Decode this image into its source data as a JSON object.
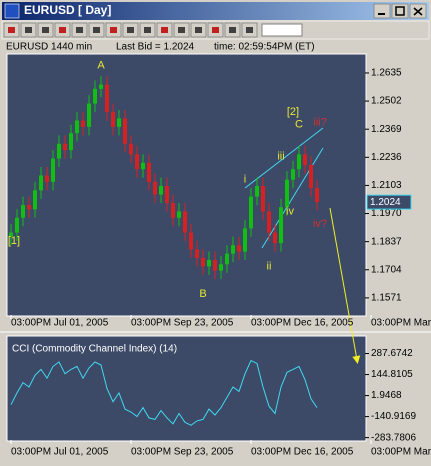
{
  "window": {
    "title": "EURUSD [ Day]"
  },
  "header": {
    "symbol": "EURUSD  1440 min",
    "last_bid": "Last Bid = 1.2024",
    "time": "time: 02:59:54PM (ET)"
  },
  "chart_data": [
    {
      "type": "candlestick",
      "open": [
        1.186,
        1.188,
        1.195,
        1.201,
        1.199,
        1.208,
        1.215,
        1.212,
        1.223,
        1.23,
        1.227,
        1.235,
        1.241,
        1.238,
        1.249,
        1.256,
        1.258,
        1.245,
        1.238,
        1.242,
        1.23,
        1.225,
        1.218,
        1.221,
        1.212,
        1.206,
        1.21,
        1.202,
        1.195,
        1.198,
        1.188,
        1.18,
        1.176,
        1.172,
        1.175,
        1.17,
        1.173,
        1.178,
        1.182,
        1.179,
        1.19,
        1.205,
        1.21,
        1.198,
        1.188,
        1.183,
        1.2,
        1.213,
        1.218,
        1.225,
        1.22,
        1.209
      ],
      "high": [
        1.192,
        1.199,
        1.205,
        1.205,
        1.212,
        1.219,
        1.219,
        1.227,
        1.234,
        1.234,
        1.239,
        1.245,
        1.245,
        1.253,
        1.26,
        1.262,
        1.262,
        1.249,
        1.246,
        1.246,
        1.234,
        1.229,
        1.225,
        1.225,
        1.216,
        1.214,
        1.214,
        1.206,
        1.202,
        1.202,
        1.192,
        1.184,
        1.18,
        1.179,
        1.179,
        1.177,
        1.182,
        1.186,
        1.186,
        1.194,
        1.209,
        1.214,
        1.214,
        1.202,
        1.192,
        1.204,
        1.217,
        1.222,
        1.229,
        1.229,
        1.224,
        1.213
      ],
      "low": [
        1.182,
        1.184,
        1.191,
        1.195,
        1.195,
        1.204,
        1.208,
        1.208,
        1.219,
        1.223,
        1.223,
        1.231,
        1.234,
        1.234,
        1.245,
        1.252,
        1.241,
        1.234,
        1.234,
        1.226,
        1.221,
        1.214,
        1.214,
        1.208,
        1.202,
        1.202,
        1.198,
        1.191,
        1.191,
        1.184,
        1.176,
        1.172,
        1.168,
        1.168,
        1.166,
        1.166,
        1.169,
        1.174,
        1.175,
        1.175,
        1.186,
        1.201,
        1.194,
        1.184,
        1.179,
        1.179,
        1.196,
        1.209,
        1.214,
        1.216,
        1.205,
        1.1984
      ],
      "close": [
        1.188,
        1.195,
        1.201,
        1.199,
        1.208,
        1.215,
        1.212,
        1.223,
        1.23,
        1.227,
        1.235,
        1.241,
        1.238,
        1.249,
        1.256,
        1.258,
        1.245,
        1.238,
        1.242,
        1.23,
        1.225,
        1.218,
        1.221,
        1.212,
        1.206,
        1.21,
        1.202,
        1.195,
        1.198,
        1.188,
        1.18,
        1.176,
        1.172,
        1.175,
        1.17,
        1.173,
        1.178,
        1.182,
        1.179,
        1.19,
        1.205,
        1.21,
        1.198,
        1.188,
        1.183,
        1.2,
        1.213,
        1.218,
        1.225,
        1.22,
        1.209,
        1.2024
      ],
      "up_color": "#10c010",
      "down_color": "#d82020",
      "xlim": [
        -0.5,
        59
      ],
      "ylim": [
        1.149,
        1.272
      ],
      "xticks": [
        {
          "value": 0,
          "label": "03:00PM Jul 01, 2005"
        },
        {
          "value": 20,
          "label": "03:00PM Sep 23, 2005"
        },
        {
          "value": 40,
          "label": "03:00PM Dec 16, 2005"
        },
        {
          "value": 60,
          "label": "03:00PM Mar"
        }
      ],
      "yticks": [
        1.2635,
        1.2502,
        1.2369,
        1.2236,
        1.2103,
        {
          "value": 1.197,
          "label": "1.1970"
        },
        1.1837,
        1.1704,
        1.1571
      ],
      "annotations": [
        {
          "text": "[1]",
          "x": 0.5,
          "y": 1.184,
          "color": "#e8e830"
        },
        {
          "text": "A",
          "x": 15,
          "y": 1.267,
          "color": "#e8e830"
        },
        {
          "text": "B",
          "x": 32,
          "y": 1.159,
          "color": "#e8e830"
        },
        {
          "text": "i",
          "x": 39,
          "y": 1.213,
          "color": "#e8e830"
        },
        {
          "text": "ii",
          "x": 43,
          "y": 1.172,
          "color": "#e8e830"
        },
        {
          "text": "iii",
          "x": 45,
          "y": 1.224,
          "color": "#e8e830"
        },
        {
          "text": "iv",
          "x": 46.5,
          "y": 1.198,
          "color": "#e8e830"
        },
        {
          "text": "[2]",
          "x": 47,
          "y": 1.245,
          "color": "#e8e830"
        },
        {
          "text": "C",
          "x": 48,
          "y": 1.239,
          "color": "#e8e830"
        },
        {
          "text": "iii?",
          "x": 51.5,
          "y": 1.24,
          "color": "#d03030"
        },
        {
          "text": "iv?",
          "x": 51.5,
          "y": 1.192,
          "color": "#d03030"
        }
      ]
    },
    {
      "type": "line",
      "title": "CCI (Commodity Channel Index) (14)",
      "color": "#40d8f0",
      "values": [
        -60,
        20,
        90,
        60,
        140,
        180,
        120,
        200,
        230,
        150,
        180,
        200,
        120,
        190,
        230,
        210,
        50,
        -40,
        20,
        -90,
        -110,
        -140,
        -80,
        -150,
        -160,
        -100,
        -150,
        -190,
        -120,
        -180,
        -200,
        -170,
        -160,
        -90,
        -130,
        -80,
        -10,
        60,
        30,
        150,
        240,
        220,
        60,
        -70,
        -120,
        60,
        160,
        180,
        200,
        110,
        -20,
        -80
      ],
      "xlim": [
        -0.5,
        59
      ],
      "ylim": [
        -300,
        400
      ],
      "xticks": [
        {
          "value": 0,
          "label": "03:00PM Jul 01, 2005"
        },
        {
          "value": 20,
          "label": "03:00PM Sep 23, 2005"
        },
        {
          "value": 40,
          "label": "03:00PM Dec 16, 2005"
        },
        {
          "value": 60,
          "label": "03:00PM Mar"
        }
      ],
      "yticks": [
        287.6742,
        144.8105,
        1.9468,
        -140.9169,
        -283.7806
      ]
    }
  ]
}
